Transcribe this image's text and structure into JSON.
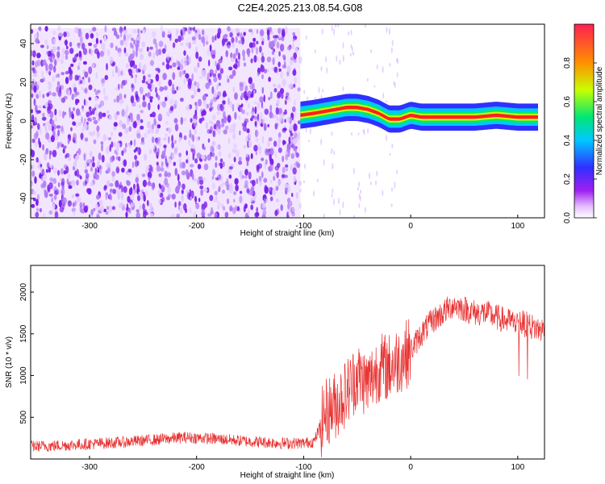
{
  "title": "C2E4.2025.213.08.54.G08",
  "colors": {
    "snr_line": "#e83030",
    "noise": "#8a3ff0",
    "colormap": [
      "#ffffff",
      "#e9c6ff",
      "#a020f0",
      "#3030ff",
      "#00c8ff",
      "#00e676",
      "#c8ff00",
      "#ff9000",
      "#ff2020"
    ]
  },
  "chart_data": [
    {
      "type": "heatmap",
      "xlabel": "Height of straight line (km)",
      "ylabel": "Frequency (Hz)",
      "xlim": [
        -355,
        125
      ],
      "ylim": [
        -50,
        50
      ],
      "xticks": [
        -300,
        -200,
        -100,
        0,
        100
      ],
      "yticks": [
        -40,
        -20,
        0,
        20,
        40
      ],
      "colorbar": {
        "label": "Normalized spectral amplitude",
        "range": [
          0,
          1
        ],
        "ticks": [
          "0.0",
          "0.2",
          "0.4",
          "0.6",
          "0.8"
        ]
      },
      "regions": [
        {
          "name": "noise",
          "x": [
            -355,
            -103
          ],
          "y": [
            -50,
            48
          ],
          "amplitude": 0.2
        },
        {
          "name": "signal",
          "x": [
            -103,
            125
          ],
          "y_center": 2,
          "amplitude": 0.85
        }
      ],
      "signal_track": {
        "x": [
          -103,
          -90,
          -80,
          -70,
          -60,
          -50,
          -40,
          -30,
          -20,
          -10,
          0,
          10,
          20,
          40,
          60,
          80,
          100,
          120
        ],
        "freq": [
          3,
          4,
          5,
          6,
          7,
          7,
          6,
          4,
          1,
          1,
          3,
          2,
          2,
          2,
          2,
          3,
          2,
          2
        ]
      }
    },
    {
      "type": "line",
      "xlabel": "Height of straight line (km)",
      "ylabel": "SNR (10 * v/v)",
      "xlim": [
        -355,
        125
      ],
      "ylim": [
        0,
        2320
      ],
      "xticks": [
        -300,
        -200,
        -100,
        0,
        100
      ],
      "yticks": [
        500,
        1000,
        1500,
        2000
      ],
      "series": [
        {
          "x": [
            -355,
            -330,
            -300,
            -270,
            -240,
            -210,
            -180,
            -150,
            -120,
            -100,
            -90,
            -80,
            -70,
            -60,
            -50,
            -40,
            -30,
            -20,
            -10,
            0,
            10,
            20,
            30,
            40,
            50,
            60,
            70,
            80,
            90,
            100,
            110,
            120,
            125
          ],
          "values": [
            150,
            160,
            180,
            200,
            230,
            260,
            240,
            210,
            190,
            190,
            210,
            550,
            650,
            800,
            1000,
            900,
            1100,
            1100,
            1200,
            1300,
            1500,
            1650,
            1750,
            1850,
            1800,
            1750,
            1750,
            1700,
            1650,
            1650,
            1600,
            1550,
            1550
          ]
        }
      ]
    }
  ]
}
